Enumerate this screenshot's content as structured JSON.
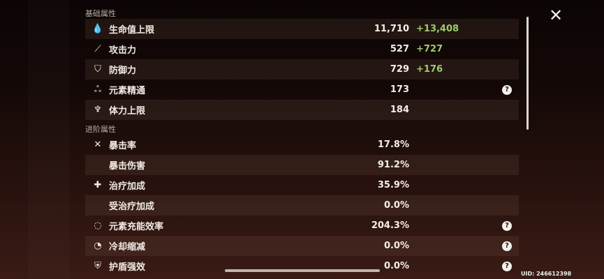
{
  "sections": {
    "basic": "基础属性",
    "advanced": "进阶属性"
  },
  "basic_stats": [
    {
      "icon": "hp-droplet-icon",
      "glyph": "💧",
      "label": "生命值上限",
      "value": "11,710",
      "bonus": "+13,408",
      "help": false
    },
    {
      "icon": "attack-sword-icon",
      "glyph": "⟋",
      "label": "攻击力",
      "value": "527",
      "bonus": "+727",
      "help": false
    },
    {
      "icon": "defense-shield-icon",
      "glyph": "⛉",
      "label": "防御力",
      "value": "729",
      "bonus": "+176",
      "help": false
    },
    {
      "icon": "elemental-mastery-icon",
      "glyph": "ஃ",
      "label": "元素精通",
      "value": "173",
      "bonus": "",
      "help": true
    },
    {
      "icon": "stamina-icon",
      "glyph": "♆",
      "label": "体力上限",
      "value": "184",
      "bonus": "",
      "help": false
    }
  ],
  "advanced_stats": [
    {
      "icon": "crit-rate-icon",
      "glyph": "✕",
      "label": "暴击率",
      "value": "17.8%",
      "help": false
    },
    {
      "icon": "",
      "glyph": "",
      "label": "暴击伤害",
      "value": "91.2%",
      "help": false
    },
    {
      "icon": "healing-cross-icon",
      "glyph": "✚",
      "label": "治疗加成",
      "value": "35.9%",
      "help": false
    },
    {
      "icon": "",
      "glyph": "",
      "label": "受治疗加成",
      "value": "0.0%",
      "help": false
    },
    {
      "icon": "energy-recharge-icon",
      "glyph": "◌",
      "label": "元素充能效率",
      "value": "204.3%",
      "help": true
    },
    {
      "icon": "cooldown-icon",
      "glyph": "◔",
      "label": "冷却缩减",
      "value": "0.0%",
      "help": true
    },
    {
      "icon": "shield-strength-icon",
      "glyph": "⛨",
      "label": "护盾强效",
      "value": "0.0%",
      "help": true
    }
  ],
  "help_glyph": "?",
  "close_glyph": "✕",
  "uid": "UID: 246612398",
  "colors": {
    "bonus": "#9ecb6a",
    "text": "#f0ebe4"
  }
}
